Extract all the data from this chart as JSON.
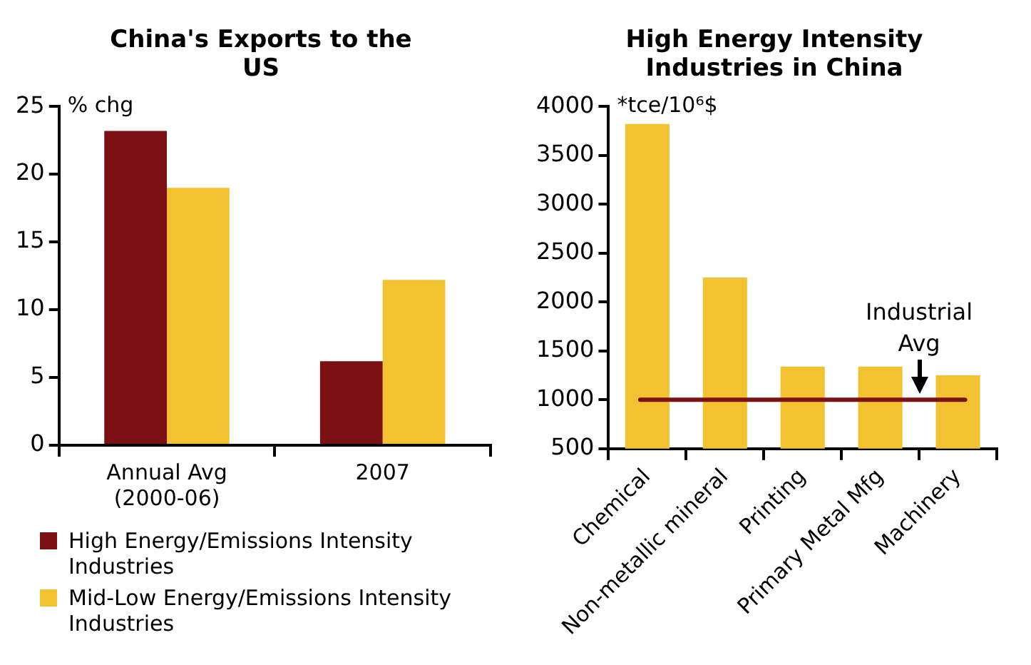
{
  "chart_data": [
    {
      "type": "bar",
      "title": "China's Exports to the US",
      "ylabel": "% chg",
      "categories": [
        "Annual Avg (2000-06)",
        "2007"
      ],
      "series": [
        {
          "name": "High Energy/Emissions Intensity Industries",
          "color": "#7b1113",
          "values": [
            23.2,
            6.2
          ]
        },
        {
          "name": "Mid-Low Energy/Emissions Intensity Industries",
          "color": "#f2c230",
          "values": [
            19,
            12.2
          ]
        }
      ],
      "ylim": [
        0,
        25
      ],
      "yticks": [
        0,
        5,
        10,
        15,
        20,
        25
      ],
      "grid": false,
      "legend": "bottom"
    },
    {
      "type": "bar",
      "title": "High Energy Intensity Industries in China",
      "ylabel": "*tce/10⁶$",
      "categories": [
        "Chemical",
        "Non-metallic mineral",
        "Printing",
        "Primary Metal Mfg",
        "Machinery"
      ],
      "values": [
        3820,
        2250,
        1340,
        1340,
        1250
      ],
      "color": "#f2c230",
      "ylim": [
        500,
        4000
      ],
      "yticks": [
        500,
        1000,
        1500,
        2000,
        2500,
        3000,
        3500,
        4000
      ],
      "ref_lines": [
        {
          "axis": "y",
          "value": 1000,
          "label": "Industrial Avg",
          "color": "#7b1113"
        }
      ],
      "grid": false,
      "legend": false
    }
  ]
}
